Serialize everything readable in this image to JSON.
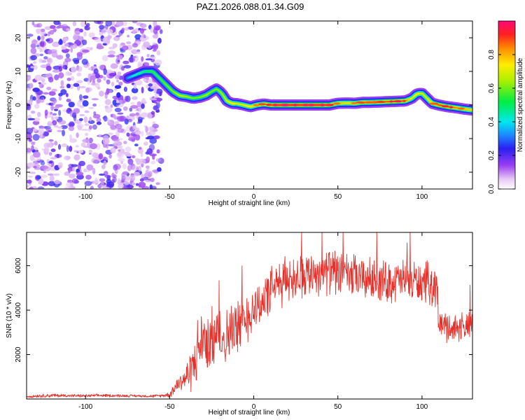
{
  "chart_data": [
    {
      "type": "heatmap",
      "title": "PAZ1.2026.088.01.34.G09",
      "xlabel": "Height of straight line (km)",
      "ylabel": "Frequency (Hz)",
      "xlim": [
        -135,
        130
      ],
      "ylim": [
        -25,
        25
      ],
      "xticks": [
        "-100",
        "-50",
        "0",
        "50",
        "100"
      ],
      "xtick_values": [
        -100,
        -50,
        0,
        50,
        100
      ],
      "yticks": [
        "20",
        "10",
        "0",
        "-10",
        "-20"
      ],
      "ytick_values": [
        20,
        10,
        0,
        -10,
        -20
      ],
      "colorbar": {
        "label": "Normalized spectral amplitude",
        "range": [
          0,
          1
        ],
        "ticks": [
          "0.0",
          "0.2",
          "0.4",
          "0.6",
          "0.8"
        ],
        "tick_values": [
          0.0,
          0.2,
          0.4,
          0.6,
          0.8
        ]
      },
      "noise_region_x": [
        -135,
        -55
      ],
      "ridge": {
        "x": [
          -75,
          -70,
          -65,
          -60,
          -56,
          -52,
          -48,
          -44,
          -40,
          -36,
          -32,
          -28,
          -25,
          -22,
          -19,
          -16,
          -13,
          -10,
          -6,
          -2,
          2,
          6,
          10,
          15,
          20,
          25,
          30,
          35,
          40,
          45,
          50,
          55,
          60,
          65,
          70,
          75,
          80,
          85,
          90,
          94,
          97,
          100,
          103,
          106,
          110,
          115,
          120,
          125,
          130
        ],
        "freq": [
          8,
          9,
          10,
          10,
          8,
          6,
          4,
          2.8,
          2.5,
          2,
          2.3,
          3,
          4,
          4.8,
          3.5,
          1.2,
          0.5,
          0.4,
          0,
          -0.5,
          0,
          0.3,
          0,
          0,
          0,
          0,
          0,
          0,
          0,
          0,
          0.5,
          0.6,
          0.5,
          0.8,
          0.8,
          0.9,
          1,
          1.1,
          1.2,
          2,
          3.3,
          3.5,
          2,
          0.5,
          0,
          -0.5,
          -0.8,
          -1.2,
          -1.5
        ],
        "amplitude": [
          0.35,
          0.45,
          0.5,
          0.55,
          0.55,
          0.6,
          0.62,
          0.68,
          0.65,
          0.6,
          0.62,
          0.65,
          0.6,
          0.62,
          0.65,
          0.7,
          0.75,
          0.7,
          0.72,
          0.75,
          0.8,
          0.85,
          0.9,
          0.95,
          0.95,
          0.95,
          0.92,
          0.95,
          0.95,
          0.9,
          0.8,
          0.75,
          0.8,
          0.85,
          0.82,
          0.85,
          0.9,
          0.92,
          0.85,
          0.7,
          0.75,
          0.7,
          0.7,
          0.8,
          0.9,
          0.9,
          0.85,
          0.8,
          0.75
        ]
      }
    },
    {
      "type": "line",
      "xlabel": "Height of straight line (km)",
      "ylabel": "SNR (10 * v/v)",
      "xlim": [
        -135,
        130
      ],
      "ylim": [
        0,
        7500
      ],
      "xticks": [
        "-100",
        "-50",
        "0",
        "50",
        "100"
      ],
      "xtick_values": [
        -100,
        -50,
        0,
        50,
        100
      ],
      "yticks": [
        "2000",
        "4000",
        "6000"
      ],
      "ytick_values": [
        2000,
        4000,
        6000
      ],
      "series": [
        {
          "name": "SNR",
          "color": "#e8302a",
          "x": [
            -135,
            -120,
            -110,
            -100,
            -90,
            -80,
            -70,
            -60,
            -55,
            -50,
            -47,
            -45,
            -43,
            -40,
            -36,
            -33,
            -30,
            -27,
            -24,
            -20,
            -17,
            -14,
            -10,
            -6,
            -2,
            0,
            4,
            8,
            12,
            16,
            20,
            24,
            28,
            32,
            36,
            40,
            44,
            48,
            52,
            56,
            60,
            64,
            68,
            72,
            76,
            80,
            84,
            88,
            92,
            96,
            100,
            104,
            108,
            109,
            110,
            114,
            118,
            122,
            126,
            130
          ],
          "values": [
            120,
            160,
            150,
            140,
            160,
            150,
            140,
            130,
            150,
            200,
            500,
            700,
            800,
            1000,
            1500,
            2300,
            2700,
            2500,
            2800,
            3000,
            2700,
            3000,
            3200,
            3600,
            3900,
            4100,
            4300,
            4700,
            5000,
            5200,
            5400,
            5500,
            5600,
            5650,
            5700,
            5700,
            5750,
            5700,
            5600,
            5500,
            5450,
            5400,
            5400,
            5350,
            5300,
            5300,
            5300,
            5350,
            5300,
            5300,
            5200,
            5200,
            5150,
            5100,
            3300,
            3300,
            3200,
            3200,
            3300,
            3200
          ],
          "noise": [
            60,
            80,
            60,
            60,
            60,
            60,
            50,
            60,
            60,
            120,
            280,
            350,
            400,
            600,
            1000,
            1300,
            1200,
            1300,
            1100,
            1200,
            1100,
            1200,
            1000,
            1100,
            1000,
            1000,
            1000,
            950,
            950,
            950,
            950,
            900,
            900,
            900,
            900,
            900,
            900,
            900,
            900,
            900,
            900,
            850,
            850,
            850,
            850,
            850,
            850,
            850,
            850,
            850,
            850,
            850,
            850,
            850,
            600,
            600,
            600,
            600,
            600,
            600
          ]
        }
      ]
    }
  ]
}
